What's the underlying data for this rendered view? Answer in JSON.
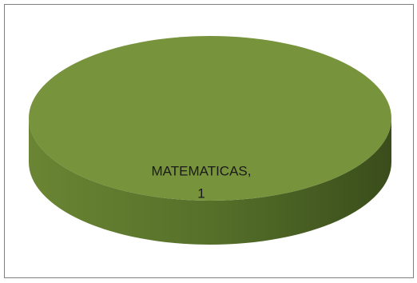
{
  "chart_data": {
    "type": "pie",
    "categories": [
      "MATEMATICAS"
    ],
    "values": [
      1
    ],
    "colors": [
      "#77933c"
    ]
  }
}
